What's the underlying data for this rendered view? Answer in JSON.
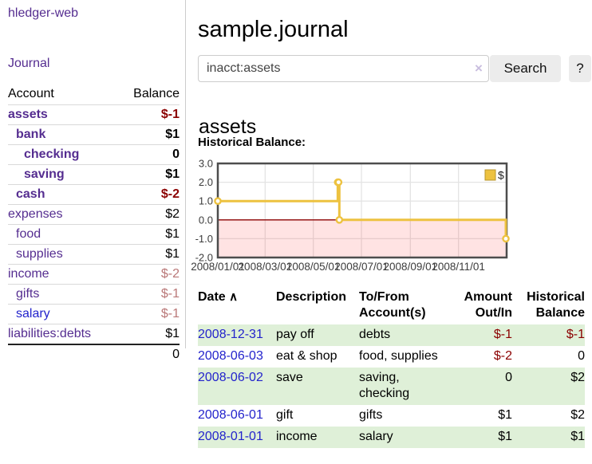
{
  "sidebar": {
    "app_title": "hledger-web",
    "journal_link": "Journal",
    "accounts_table": {
      "headers": {
        "account": "Account",
        "balance": "Balance"
      },
      "rows": [
        {
          "account": "assets",
          "indent": 0,
          "in_account": true,
          "balance": "$-1",
          "balance_style": "neg-strong"
        },
        {
          "account": "bank",
          "indent": 1,
          "in_account": true,
          "balance": "$1",
          "balance_style": ""
        },
        {
          "account": "checking",
          "indent": 2,
          "in_account": true,
          "balance": "0",
          "balance_style": ""
        },
        {
          "account": "saving",
          "indent": 2,
          "in_account": true,
          "balance": "$1",
          "balance_style": ""
        },
        {
          "account": "cash",
          "indent": 1,
          "in_account": true,
          "balance": "$-2",
          "balance_style": "neg-strong"
        },
        {
          "account": "expenses",
          "indent": 0,
          "in_account": false,
          "balance": "$2",
          "balance_style": ""
        },
        {
          "account": "food",
          "indent": 1,
          "in_account": false,
          "balance": "$1",
          "balance_style": ""
        },
        {
          "account": "supplies",
          "indent": 1,
          "in_account": false,
          "balance": "$1",
          "balance_style": ""
        },
        {
          "account": "income",
          "indent": 0,
          "in_account": false,
          "balance": "$-2",
          "balance_style": "neg-soft"
        },
        {
          "account": "gifts",
          "indent": 1,
          "in_account": false,
          "balance": "$-1",
          "balance_style": "neg-soft"
        },
        {
          "account": "salary",
          "indent": 1,
          "in_account": false,
          "balance": "$-1",
          "balance_style": "neg-soft",
          "link_color": "blue"
        },
        {
          "account": "liabilities:debts",
          "indent": 0,
          "in_account": false,
          "balance": "$1",
          "balance_style": ""
        }
      ],
      "total": "0"
    }
  },
  "main": {
    "title": "sample.journal",
    "search": {
      "value": "inacct:assets",
      "clear_icon": "×",
      "button_label": "Search",
      "help_label": "?"
    },
    "account_heading": "assets",
    "chart_heading": "Historical Balance:",
    "register": {
      "headers": [
        "Date",
        "Description",
        "To/From Account(s)",
        "Amount Out/In",
        "Historical Balance"
      ],
      "sort_icon": "∧",
      "rows": [
        {
          "date": "2008-12-31",
          "description": "pay off",
          "accounts": "debts",
          "amount": "$-1",
          "amount_negative": true,
          "balance": "$-1",
          "balance_negative": true
        },
        {
          "date": "2008-06-03",
          "description": "eat & shop",
          "accounts": "food, supplies",
          "amount": "$-2",
          "amount_negative": true,
          "balance": "0",
          "balance_negative": false
        },
        {
          "date": "2008-06-02",
          "description": "save",
          "accounts": "saving, checking",
          "amount": "0",
          "amount_negative": false,
          "balance": "$2",
          "balance_negative": false
        },
        {
          "date": "2008-06-01",
          "description": "gift",
          "accounts": "gifts",
          "amount": "$1",
          "amount_negative": false,
          "balance": "$2",
          "balance_negative": false
        },
        {
          "date": "2008-01-01",
          "description": "income",
          "accounts": "salary",
          "amount": "$1",
          "amount_negative": false,
          "balance": "$1",
          "balance_negative": false
        }
      ]
    }
  },
  "chart_data": {
    "type": "line",
    "step": true,
    "title": "Historical Balance",
    "series": [
      {
        "name": "$",
        "color": "#edc240",
        "points": [
          [
            "2008-01-01",
            1
          ],
          [
            "2008-06-01",
            2
          ],
          [
            "2008-06-02",
            2
          ],
          [
            "2008-06-03",
            0
          ],
          [
            "2008-12-31",
            -1
          ]
        ]
      }
    ],
    "x_range": [
      "2008-01-01",
      "2009-01-01"
    ],
    "x_ticks": [
      {
        "label": "2008/01/01",
        "date": "2008-01-01"
      },
      {
        "label": "2008/03/01",
        "date": "2008-03-01"
      },
      {
        "label": "2008/05/01",
        "date": "2008-05-01"
      },
      {
        "label": "2008/07/01",
        "date": "2008-07-01"
      },
      {
        "label": "2008/09/01",
        "date": "2008-09-01"
      },
      {
        "label": "2008/11/01",
        "date": "2008-11-01"
      }
    ],
    "ylim": [
      -2,
      3
    ],
    "y_ticks": [
      {
        "label": "3.0",
        "value": 3
      },
      {
        "label": "2.0",
        "value": 2
      },
      {
        "label": "1.0",
        "value": 1
      },
      {
        "label": "0.0",
        "value": 0
      },
      {
        "label": "-1.0",
        "value": -1
      },
      {
        "label": "-2.0",
        "value": -2
      }
    ],
    "legend": {
      "label": "$",
      "position": "top-right"
    },
    "grid": true,
    "colors": {
      "grid_line": "#e4e4e4",
      "border": "#4d4d4d",
      "zero_line": "#8b0000",
      "negative_region": "rgba(255,0,0,0.11)",
      "tick_text": "#3c3c3c"
    }
  }
}
